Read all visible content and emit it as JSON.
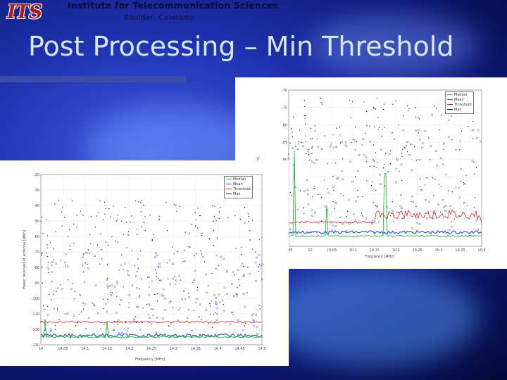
{
  "header": {
    "logo_text": "ITS",
    "org_name": "Institute for Telecommunication Sciences",
    "location": "Boulder, Colorado"
  },
  "title": "Post Processing – Min Threshold",
  "plots": [
    {
      "id": "right",
      "legend": [
        "Median",
        "Mean",
        "Threshold",
        "Max"
      ],
      "xticks": [
        "9.85",
        "10",
        "10.05",
        "10.1",
        "10.15",
        "10.2",
        "10.25",
        "10.3",
        "10.35",
        "10.4"
      ],
      "yticks": [
        "-70",
        "-75",
        "-80",
        "-85",
        "-90",
        "-95",
        "-100",
        "-105",
        "-110",
        "-115"
      ],
      "xlabel": "Frequency [MHz]",
      "ylabel": "Power [dBm]"
    },
    {
      "id": "left",
      "legend": [
        "Median",
        "Mean",
        "Threshold",
        "Max"
      ],
      "xticks": [
        "14",
        "14.05",
        "14.1",
        "14.15",
        "14.2",
        "14.25",
        "14.3",
        "14.35",
        "14.4",
        "14.45",
        "14.5"
      ],
      "yticks": [
        "-20",
        "-30",
        "-40",
        "-50",
        "-60",
        "-70",
        "-80",
        "-90",
        "-100",
        "-110",
        "-120",
        "-130"
      ],
      "xlabel": "Frequency [MHz]",
      "ylabel": "Power received at antenna [dBm]"
    }
  ],
  "colors": {
    "median": "#22bb33",
    "mean": "#3355dd",
    "threshold": "#ee2222",
    "max": "#222222"
  }
}
